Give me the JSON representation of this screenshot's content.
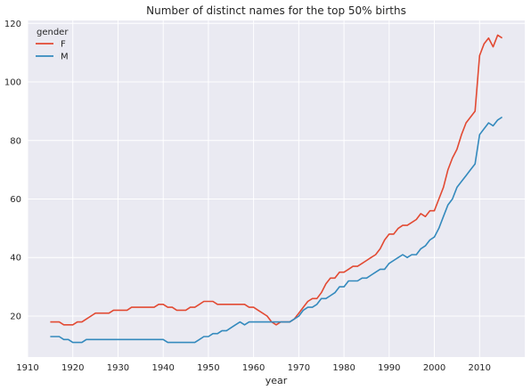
{
  "chart_data": {
    "type": "line",
    "title": "Number of distinct names for the top 50% births",
    "xlabel": "year",
    "ylabel": "",
    "xlim": [
      1910,
      2020
    ],
    "ylim": [
      6,
      121
    ],
    "xticks": [
      1910,
      1920,
      1930,
      1940,
      1950,
      1960,
      1970,
      1980,
      1990,
      2000,
      2010
    ],
    "yticks": [
      20,
      40,
      60,
      80,
      100,
      120
    ],
    "grid": true,
    "legend": {
      "title": "gender",
      "position": "top-left"
    },
    "x": [
      1915,
      1916,
      1917,
      1918,
      1919,
      1920,
      1921,
      1922,
      1923,
      1924,
      1925,
      1926,
      1927,
      1928,
      1929,
      1930,
      1931,
      1932,
      1933,
      1934,
      1935,
      1936,
      1937,
      1938,
      1939,
      1940,
      1941,
      1942,
      1943,
      1944,
      1945,
      1946,
      1947,
      1948,
      1949,
      1950,
      1951,
      1952,
      1953,
      1954,
      1955,
      1956,
      1957,
      1958,
      1959,
      1960,
      1961,
      1962,
      1963,
      1964,
      1965,
      1966,
      1967,
      1968,
      1969,
      1970,
      1971,
      1972,
      1973,
      1974,
      1975,
      1976,
      1977,
      1978,
      1979,
      1980,
      1981,
      1982,
      1983,
      1984,
      1985,
      1986,
      1987,
      1988,
      1989,
      1990,
      1991,
      1992,
      1993,
      1994,
      1995,
      1996,
      1997,
      1998,
      1999,
      2000,
      2001,
      2002,
      2003,
      2004,
      2005,
      2006,
      2007,
      2008,
      2009,
      2010,
      2011,
      2012,
      2013,
      2014,
      2015
    ],
    "series": [
      {
        "name": "F",
        "color": "#e24a33",
        "values": [
          18,
          18,
          18,
          17,
          17,
          17,
          18,
          18,
          19,
          20,
          21,
          21,
          21,
          21,
          22,
          22,
          22,
          22,
          23,
          23,
          23,
          23,
          23,
          23,
          24,
          24,
          23,
          23,
          22,
          22,
          22,
          23,
          23,
          24,
          25,
          25,
          25,
          24,
          24,
          24,
          24,
          24,
          24,
          24,
          23,
          23,
          22,
          21,
          20,
          18,
          17,
          18,
          18,
          18,
          19,
          21,
          23,
          25,
          26,
          26,
          28,
          31,
          33,
          33,
          35,
          35,
          36,
          37,
          37,
          38,
          39,
          40,
          41,
          43,
          46,
          48,
          48,
          50,
          51,
          51,
          52,
          53,
          55,
          54,
          56,
          56,
          60,
          64,
          70,
          74,
          77,
          82,
          86,
          88,
          90,
          109,
          113,
          115,
          112,
          116,
          115
        ]
      },
      {
        "name": "M",
        "color": "#348abd",
        "values": [
          13,
          13,
          13,
          12,
          12,
          11,
          11,
          11,
          12,
          12,
          12,
          12,
          12,
          12,
          12,
          12,
          12,
          12,
          12,
          12,
          12,
          12,
          12,
          12,
          12,
          12,
          11,
          11,
          11,
          11,
          11,
          11,
          11,
          12,
          13,
          13,
          14,
          14,
          15,
          15,
          16,
          17,
          18,
          17,
          18,
          18,
          18,
          18,
          18,
          18,
          18,
          18,
          18,
          18,
          19,
          20,
          22,
          23,
          23,
          24,
          26,
          26,
          27,
          28,
          30,
          30,
          32,
          32,
          32,
          33,
          33,
          34,
          35,
          36,
          36,
          38,
          39,
          40,
          41,
          40,
          41,
          41,
          43,
          44,
          46,
          47,
          50,
          54,
          58,
          60,
          64,
          66,
          68,
          70,
          72,
          82,
          84,
          86,
          85,
          87,
          88
        ]
      }
    ]
  }
}
